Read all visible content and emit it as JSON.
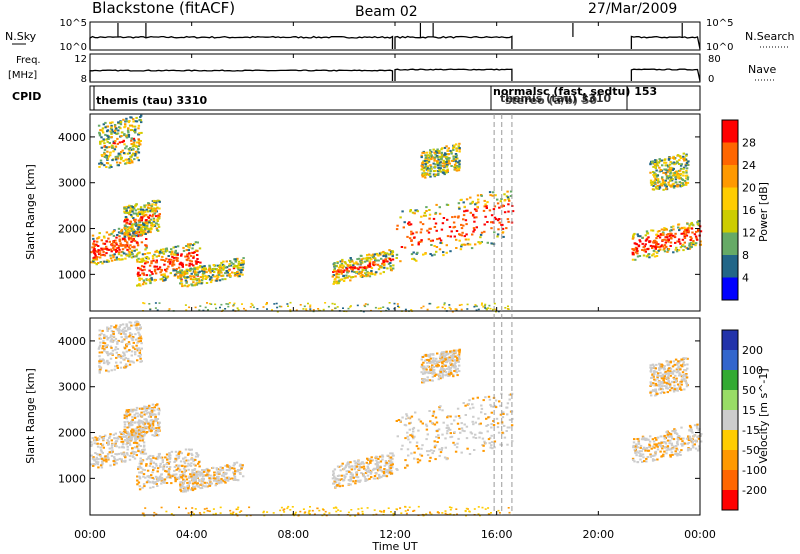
{
  "header": {
    "title": "Blackstone (fitACF)",
    "beam": "Beam 02",
    "date": "27/Mar/2009"
  },
  "colors": {
    "frame": "#000000",
    "dashed_marker": "#999999",
    "background": "#ffffff"
  },
  "chart_data": [
    {
      "type": "line",
      "name": "noise-panel",
      "left_label": "N.Sky",
      "right_label": "N.Search",
      "left_ticks": [
        "10^5",
        "10^0"
      ],
      "right_ticks": [
        "10^5",
        "10^0"
      ],
      "segments": [
        [
          0.0,
          11.9
        ],
        [
          12.0,
          16.6
        ],
        [
          21.3,
          24.0
        ]
      ],
      "spikes": [
        1.1,
        2.2,
        13.0,
        13.5,
        19.0,
        23.3
      ]
    },
    {
      "type": "line",
      "name": "frequency-panel",
      "left_label": "Freq.",
      "left_unit": "[MHz]",
      "right_label": "Nave",
      "left_ticks": [
        "12",
        "8"
      ],
      "right_ticks": [
        "80",
        "0"
      ],
      "segments": [
        [
          0.0,
          11.9
        ],
        [
          12.0,
          16.6
        ],
        [
          21.3,
          24.0
        ]
      ]
    },
    {
      "type": "table",
      "name": "cpid-panel",
      "label": "CPID",
      "entries": [
        {
          "start_hour": 0.0,
          "text": "themis (tau) 3310"
        },
        {
          "start_hour": 16.0,
          "text": "normalsc (fast, sedtu) 153"
        },
        {
          "start_hour": 16.0,
          "text": "themis (tau) 3310"
        },
        {
          "start_hour": 16.0,
          "text": "stereo (a/b) 50"
        }
      ]
    },
    {
      "type": "heatmap",
      "name": "power-panel",
      "ylabel": "Slant Range [km]",
      "ylim": [
        200,
        4500
      ],
      "yticks": [
        1000,
        2000,
        3000,
        4000
      ],
      "colorbar_label": "Power [dB]",
      "colorbar_ticks": [
        "28",
        "24",
        "20",
        "16",
        "12",
        "8",
        "4"
      ],
      "colorbar_colors": [
        "#ff0000",
        "#ff6600",
        "#ff9900",
        "#ffcc00",
        "#cccc00",
        "#66aa66",
        "#226688",
        "#0000ff"
      ],
      "blobs": [
        {
          "t0": 0.0,
          "t1": 2.2,
          "r0": 1200,
          "r1": 1900,
          "core": 0.55
        },
        {
          "t0": 0.3,
          "t1": 2.0,
          "r0": 3300,
          "r1": 4300,
          "core": 0.05
        },
        {
          "t0": 1.8,
          "t1": 4.3,
          "r0": 750,
          "r1": 1450,
          "core": 0.45
        },
        {
          "t0": 1.3,
          "t1": 2.7,
          "r0": 1800,
          "r1": 2500,
          "core": 0.15
        },
        {
          "t0": 3.5,
          "t1": 6.0,
          "r0": 700,
          "r1": 1100,
          "core": 0.05
        },
        {
          "t0": 9.5,
          "t1": 11.9,
          "r0": 800,
          "r1": 1300,
          "core": 0.2
        },
        {
          "t0": 12.0,
          "t1": 16.6,
          "r0": 1200,
          "r1": 2400,
          "core": 0.5
        },
        {
          "t0": 21.3,
          "t1": 24.0,
          "r0": 1300,
          "r1": 1900,
          "core": 0.55
        },
        {
          "t0": 13.0,
          "t1": 14.5,
          "r0": 3100,
          "r1": 3700,
          "core": 0.0
        },
        {
          "t0": 22.0,
          "t1": 23.5,
          "r0": 2800,
          "r1": 3500,
          "core": 0.0
        }
      ],
      "ground_scatter": {
        "t0": 2.0,
        "t1": 16.5,
        "r0": 200,
        "r1": 400
      }
    },
    {
      "type": "heatmap",
      "name": "velocity-panel",
      "ylabel": "Slant Range [km]",
      "ylim": [
        200,
        4500
      ],
      "yticks": [
        1000,
        2000,
        3000,
        4000
      ],
      "colorbar_label": "Velocity [m s^-1]",
      "colorbar_ticks": [
        "200",
        "100",
        "50",
        "15",
        "-15",
        "-50",
        "-100",
        "-200"
      ],
      "colorbar_colors": [
        "#2233aa",
        "#3366cc",
        "#33aa33",
        "#99dd66",
        "#cccccc",
        "#ffcc00",
        "#ff9900",
        "#ff6600",
        "#ff0000"
      ]
    }
  ],
  "time_axis": {
    "xlabel": "Time UT",
    "xlim": [
      0,
      24
    ],
    "ticks": [
      "00:00",
      "04:00",
      "08:00",
      "12:00",
      "16:00",
      "20:00",
      "00:00"
    ],
    "dashed_markers": [
      15.9,
      16.2,
      16.6
    ]
  }
}
